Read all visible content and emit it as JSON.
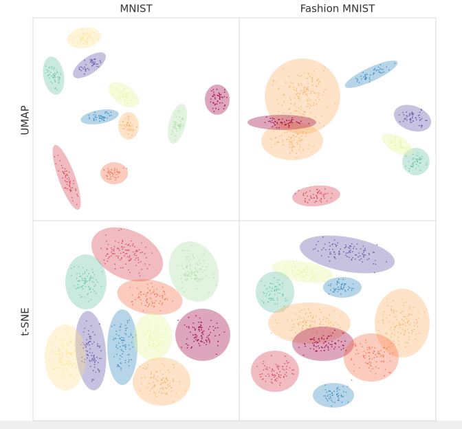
{
  "columns": [
    "MNIST",
    "Fashion MNIST"
  ],
  "rows": [
    "UMAP",
    "t-SNE"
  ]
}
